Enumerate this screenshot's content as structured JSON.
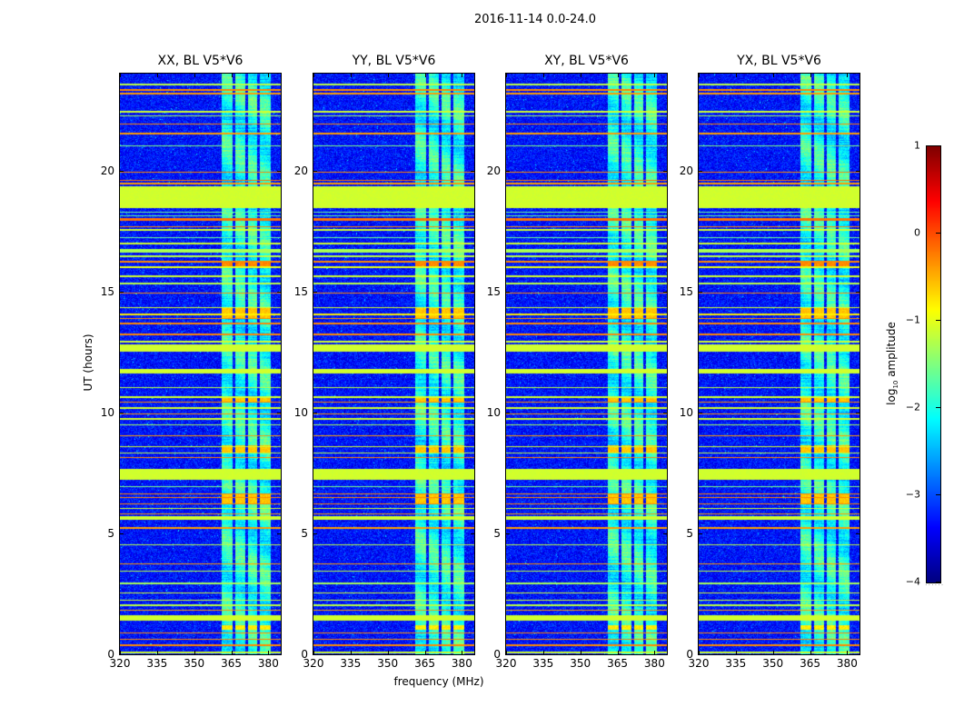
{
  "suptitle": "2016-11-14 0.0-24.0",
  "ylabel": "UT (hours)",
  "xlabel": "frequency (MHz)",
  "colorbar": {
    "label_main": "log",
    "label_sub": "10",
    "label_rest": " amplitude",
    "range": [
      -4,
      1
    ],
    "ticks": [
      "1",
      "0",
      "−1",
      "−2",
      "−3",
      "−4"
    ],
    "tick_values": [
      1,
      0,
      -1,
      -2,
      -3,
      -4
    ],
    "colormap": "jet"
  },
  "chart_data": {
    "type": "heatmap",
    "title": "2016-11-14 0.0-24.0",
    "xlabel": "frequency (MHz)",
    "ylabel": "UT (hours)",
    "xlim": [
      320,
      385
    ],
    "ylim": [
      0,
      24
    ],
    "xticks": [
      320,
      335,
      350,
      365,
      380
    ],
    "yticks": [
      0,
      5,
      10,
      15,
      20
    ],
    "zlabel": "log10 amplitude",
    "zlim": [
      -4,
      1
    ],
    "background_level": -3.3,
    "rfi_channel_bands_mhz": [
      [
        361,
        365.5
      ],
      [
        366.5,
        370.8
      ],
      [
        371.8,
        375.6
      ],
      [
        376.6,
        380.8
      ]
    ],
    "rfi_channel_level": -2.0,
    "rfi_time_rows": [
      [
        23.5,
        23.58,
        -1.2
      ],
      [
        23.3,
        23.36,
        -0.3
      ],
      [
        23.15,
        23.2,
        -0.4
      ],
      [
        22.4,
        22.46,
        -1.1
      ],
      [
        22.22,
        22.27,
        -1.3
      ],
      [
        21.9,
        21.95,
        -0.3
      ],
      [
        21.5,
        21.55,
        -0.4
      ],
      [
        21.0,
        21.05,
        -1.5
      ],
      [
        19.9,
        19.95,
        -0.3
      ],
      [
        19.55,
        19.62,
        -0.2
      ],
      [
        19.4,
        19.5,
        -0.4
      ],
      [
        18.45,
        19.35,
        -1.1
      ],
      [
        18.25,
        18.3,
        -1.6
      ],
      [
        18.1,
        18.15,
        -1.6
      ],
      [
        17.9,
        18.02,
        -0.2
      ],
      [
        17.65,
        17.7,
        -0.3
      ],
      [
        17.5,
        17.56,
        -1.1
      ],
      [
        17.2,
        17.25,
        -1.6
      ],
      [
        16.95,
        17.0,
        -1.1
      ],
      [
        16.6,
        16.75,
        -1.3
      ],
      [
        16.4,
        16.5,
        -1.2
      ],
      [
        16.2,
        16.26,
        -0.3
      ],
      [
        15.95,
        16.02,
        -1.0
      ],
      [
        15.6,
        15.66,
        -1.1
      ],
      [
        15.3,
        15.35,
        -1.2
      ],
      [
        14.9,
        14.95,
        -0.3
      ],
      [
        14.3,
        14.35,
        -1.1
      ],
      [
        14.0,
        14.07,
        -0.8
      ],
      [
        13.85,
        13.9,
        -0.3
      ],
      [
        13.65,
        13.7,
        -0.3
      ],
      [
        13.2,
        13.25,
        -0.3
      ],
      [
        12.9,
        12.95,
        -1.1
      ],
      [
        12.5,
        12.8,
        -1.1
      ],
      [
        11.6,
        11.8,
        -1.1
      ],
      [
        11.0,
        11.05,
        -1.2
      ],
      [
        10.6,
        10.65,
        -1.1
      ],
      [
        10.4,
        10.45,
        -0.3
      ],
      [
        10.15,
        10.2,
        -1.1
      ],
      [
        9.9,
        9.94,
        -0.4
      ],
      [
        9.7,
        9.75,
        -1.1
      ],
      [
        9.45,
        9.5,
        -1.3
      ],
      [
        9.0,
        9.04,
        -0.4
      ],
      [
        8.55,
        8.6,
        -1.1
      ],
      [
        8.3,
        8.35,
        -1.2
      ],
      [
        8.1,
        8.15,
        -0.3
      ],
      [
        7.2,
        7.65,
        -1.1
      ],
      [
        6.9,
        6.95,
        -1.5
      ],
      [
        6.6,
        6.64,
        -0.3
      ],
      [
        6.45,
        6.5,
        -0.3
      ],
      [
        6.2,
        6.25,
        -0.3
      ],
      [
        6.0,
        6.05,
        -1.1
      ],
      [
        5.8,
        5.84,
        -0.4
      ],
      [
        5.55,
        5.7,
        -1.1
      ],
      [
        5.2,
        5.24,
        -0.4
      ],
      [
        4.5,
        4.55,
        -1.2
      ],
      [
        3.7,
        3.74,
        -0.4
      ],
      [
        3.4,
        3.45,
        -1.2
      ],
      [
        2.9,
        2.95,
        -1.3
      ],
      [
        2.5,
        2.55,
        -1.1
      ],
      [
        2.2,
        2.25,
        -1.1
      ],
      [
        2.0,
        2.05,
        -1.2
      ],
      [
        1.8,
        1.84,
        -0.4
      ],
      [
        1.4,
        1.6,
        -1.1
      ],
      [
        0.85,
        0.9,
        -0.3
      ],
      [
        0.6,
        0.65,
        -0.3
      ],
      [
        0.35,
        0.4,
        -0.3
      ],
      [
        0.05,
        0.12,
        -1.1
      ]
    ],
    "rfi_channel_hot_patches": [
      [
        16.0,
        16.2,
        -0.3
      ],
      [
        13.9,
        14.3,
        -0.6
      ],
      [
        10.4,
        10.65,
        -0.6
      ],
      [
        8.3,
        8.65,
        -0.6
      ],
      [
        6.2,
        6.6,
        -0.6
      ],
      [
        1.0,
        1.2,
        -0.8
      ]
    ],
    "panels": [
      {
        "title": "XX, BL V5*V6",
        "seed": 11
      },
      {
        "title": "YY, BL V5*V6",
        "seed": 23
      },
      {
        "title": "XY, BL V5*V6",
        "seed": 37
      },
      {
        "title": "YX, BL V5*V6",
        "seed": 53
      }
    ]
  }
}
